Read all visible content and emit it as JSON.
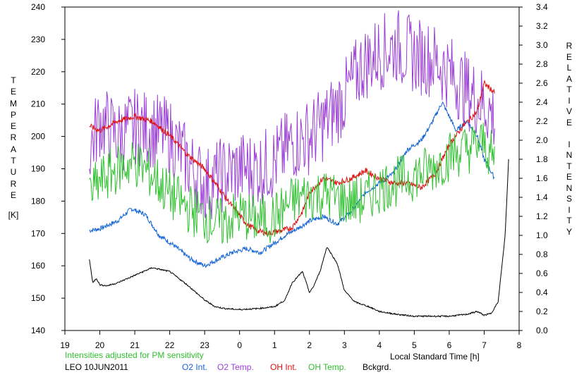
{
  "chart_data": {
    "type": "line",
    "left_axis": {
      "label_letters": [
        "T",
        "E",
        "M",
        "P",
        "E",
        "R",
        "A",
        "T",
        "U",
        "R",
        "E"
      ],
      "unit": "[K]",
      "ylim": [
        140,
        240
      ],
      "ticks": [
        "140",
        "150",
        "160",
        "170",
        "180",
        "190",
        "200",
        "210",
        "220",
        "230",
        "240"
      ]
    },
    "right_axis": {
      "label_letters_word1": [
        "R",
        "E",
        "L",
        "A",
        "T",
        "I",
        "V",
        "E"
      ],
      "label_letters_word2": [
        "I",
        "N",
        "T",
        "E",
        "N",
        "S",
        "I",
        "T",
        "Y"
      ],
      "ylim": [
        0.0,
        3.4
      ],
      "ticks": [
        "0.0",
        "0.2",
        "0.4",
        "0.6",
        "0.8",
        "1.0",
        "1.2",
        "1.4",
        "1.6",
        "1.8",
        "2.0",
        "2.2",
        "2.4",
        "2.6",
        "2.8",
        "3.0",
        "3.2",
        "3.4"
      ]
    },
    "x_axis": {
      "label": "Local Standard Time [h]",
      "ticks": [
        "19",
        "20",
        "21",
        "22",
        "23",
        "0",
        "1",
        "2",
        "3",
        "4",
        "5",
        "6",
        "7",
        "8"
      ]
    },
    "note": "Intensities adjusted for PM sensitivity",
    "station": "LEO 10JUN2011",
    "series": [
      {
        "name": "O2 Int.",
        "color": "#1565d8",
        "axis": "right",
        "x": [
          19.7,
          20.0,
          20.5,
          20.9,
          21.3,
          21.7,
          22.1,
          22.6,
          23.0,
          23.4,
          23.8,
          24.2,
          24.6,
          25.0,
          25.3,
          25.6,
          26.0,
          26.4,
          26.8,
          27.2,
          27.6,
          28.0,
          28.4,
          28.8,
          29.2,
          29.5,
          29.8,
          30.2,
          30.5,
          30.8,
          31.0,
          31.3
        ],
        "y": [
          1.05,
          1.07,
          1.15,
          1.28,
          1.22,
          1.0,
          0.9,
          0.75,
          0.68,
          0.75,
          0.82,
          0.86,
          0.82,
          0.92,
          1.0,
          1.06,
          1.15,
          1.2,
          1.12,
          1.25,
          1.45,
          1.55,
          1.65,
          1.9,
          2.0,
          2.18,
          2.4,
          2.1,
          2.2,
          2.05,
          1.8,
          1.6
        ]
      },
      {
        "name": "O2 Temp.",
        "color": "#9a3fd6",
        "axis": "left",
        "x": [
          19.7,
          20.0,
          20.5,
          21.0,
          21.5,
          22.0,
          22.5,
          23.0,
          23.5,
          24.0,
          24.5,
          25.0,
          25.5,
          26.0,
          26.5,
          27.0,
          27.5,
          28.0,
          28.5,
          29.0,
          29.5,
          30.0,
          30.5,
          31.0,
          31.3
        ],
        "y": [
          196,
          205,
          200,
          203,
          202,
          200,
          192,
          185,
          188,
          190,
          190,
          192,
          198,
          200,
          205,
          212,
          222,
          226,
          228,
          225,
          224,
          220,
          214,
          210,
          206
        ]
      },
      {
        "name": "OH Int.",
        "color": "#e01010",
        "axis": "right",
        "x": [
          19.7,
          20.0,
          20.5,
          21.0,
          21.5,
          22.0,
          22.5,
          23.0,
          23.4,
          23.8,
          24.2,
          24.5,
          24.8,
          25.2,
          25.5,
          25.8,
          26.0,
          26.4,
          26.8,
          27.2,
          27.6,
          28.0,
          28.4,
          28.8,
          29.2,
          29.6,
          30.0,
          30.4,
          30.8,
          31.0,
          31.3
        ],
        "y": [
          2.15,
          2.1,
          2.2,
          2.25,
          2.2,
          2.05,
          1.85,
          1.7,
          1.5,
          1.3,
          1.12,
          1.05,
          1.02,
          1.05,
          1.08,
          1.25,
          1.45,
          1.6,
          1.55,
          1.6,
          1.68,
          1.6,
          1.55,
          1.55,
          1.5,
          1.65,
          1.95,
          2.15,
          2.3,
          2.6,
          2.5
        ]
      },
      {
        "name": "OH Temp.",
        "color": "#30c030",
        "axis": "left",
        "x": [
          19.7,
          20.0,
          20.5,
          21.0,
          21.5,
          22.0,
          22.5,
          23.0,
          23.5,
          24.0,
          24.5,
          25.0,
          25.5,
          26.0,
          26.5,
          27.0,
          27.5,
          28.0,
          28.5,
          29.0,
          29.5,
          30.0,
          30.5,
          31.0,
          31.3
        ],
        "y": [
          182,
          186,
          190,
          192,
          188,
          182,
          178,
          175,
          173,
          176,
          174,
          175,
          180,
          182,
          182,
          180,
          180,
          184,
          186,
          188,
          190,
          194,
          196,
          198,
          192
        ]
      },
      {
        "name": "Bckgrd.",
        "color": "#000000",
        "axis": "right",
        "x": [
          19.7,
          19.8,
          19.9,
          20.0,
          20.2,
          20.5,
          21.0,
          21.5,
          22.0,
          22.5,
          23.0,
          23.3,
          23.6,
          24.0,
          24.5,
          25.0,
          25.3,
          25.5,
          25.8,
          26.0,
          26.1,
          26.3,
          26.5,
          26.8,
          27.0,
          27.3,
          27.7,
          28.0,
          28.5,
          29.0,
          29.5,
          30.0,
          30.5,
          30.8,
          31.0,
          31.2,
          31.4,
          31.6,
          31.7
        ],
        "y": [
          0.75,
          0.5,
          0.55,
          0.48,
          0.47,
          0.5,
          0.58,
          0.66,
          0.62,
          0.48,
          0.32,
          0.25,
          0.23,
          0.22,
          0.23,
          0.25,
          0.32,
          0.5,
          0.62,
          0.4,
          0.45,
          0.62,
          0.88,
          0.7,
          0.42,
          0.3,
          0.25,
          0.2,
          0.17,
          0.15,
          0.15,
          0.15,
          0.17,
          0.2,
          0.16,
          0.18,
          0.3,
          1.0,
          1.8
        ]
      }
    ]
  }
}
